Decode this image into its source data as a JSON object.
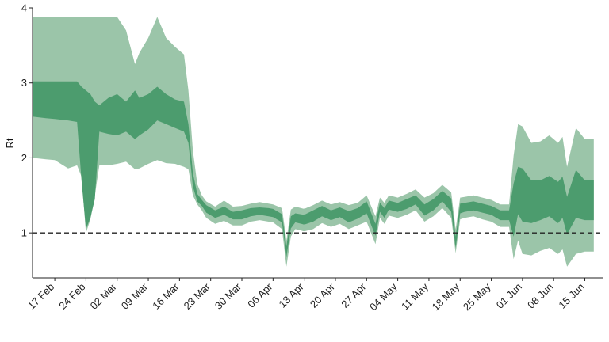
{
  "chart_data": {
    "type": "area",
    "ylabel": "Rt",
    "xlabel": "",
    "xlim": [
      "2020-02-12",
      "2020-06-19"
    ],
    "ylim": [
      0.4,
      4
    ],
    "y_ticks": [
      "1",
      "2",
      "3",
      "4"
    ],
    "x_ticks": [
      "17 Feb",
      "24 Feb",
      "02 Mar",
      "09 Mar",
      "16 Mar",
      "23 Mar",
      "30 Mar",
      "06 Apr",
      "13 Apr",
      "20 Apr",
      "27 Apr",
      "04 May",
      "11 May",
      "18 May",
      "25 May",
      "01 Jun",
      "08 Jun",
      "15 Jun"
    ],
    "x_tick_dates": [
      "2020-02-17",
      "2020-02-24",
      "2020-03-02",
      "2020-03-09",
      "2020-03-16",
      "2020-03-23",
      "2020-03-30",
      "2020-04-06",
      "2020-04-13",
      "2020-04-20",
      "2020-04-27",
      "2020-05-04",
      "2020-05-11",
      "2020-05-18",
      "2020-05-25",
      "2020-06-01",
      "2020-06-08",
      "2020-06-15"
    ],
    "reference_line": {
      "y": 1,
      "style": "dashed"
    },
    "colors": {
      "outer_band": "#9bc5a9",
      "inner_band": "#4c9c6e",
      "reference_line": "#222222"
    },
    "grid": false,
    "legend": "none",
    "series": [
      {
        "role": "90% credible interval",
        "x": [
          "2020-02-12",
          "2020-02-15",
          "2020-02-17",
          "2020-02-20",
          "2020-02-22",
          "2020-02-23",
          "2020-02-24",
          "2020-02-25",
          "2020-02-26",
          "2020-02-27",
          "2020-02-29",
          "2020-03-02",
          "2020-03-04",
          "2020-03-06",
          "2020-03-07",
          "2020-03-09",
          "2020-03-11",
          "2020-03-13",
          "2020-03-15",
          "2020-03-17",
          "2020-03-18",
          "2020-03-19",
          "2020-03-20",
          "2020-03-21",
          "2020-03-22",
          "2020-03-24",
          "2020-03-26",
          "2020-03-28",
          "2020-03-30",
          "2020-04-01",
          "2020-04-03",
          "2020-04-05",
          "2020-04-06",
          "2020-04-08",
          "2020-04-09",
          "2020-04-10",
          "2020-04-11",
          "2020-04-13",
          "2020-04-15",
          "2020-04-17",
          "2020-04-19",
          "2020-04-21",
          "2020-04-23",
          "2020-04-25",
          "2020-04-27",
          "2020-04-29",
          "2020-04-30",
          "2020-05-01",
          "2020-05-02",
          "2020-05-04",
          "2020-05-06",
          "2020-05-08",
          "2020-05-10",
          "2020-05-12",
          "2020-05-14",
          "2020-05-16",
          "2020-05-17",
          "2020-05-18",
          "2020-05-19",
          "2020-05-21",
          "2020-05-23",
          "2020-05-25",
          "2020-05-27",
          "2020-05-29",
          "2020-05-30",
          "2020-05-31",
          "2020-06-01",
          "2020-06-03",
          "2020-06-05",
          "2020-06-07",
          "2020-06-09",
          "2020-06-10",
          "2020-06-11",
          "2020-06-13",
          "2020-06-15",
          "2020-06-17"
        ],
        "upper": [
          3.88,
          3.88,
          3.88,
          3.88,
          3.88,
          3.88,
          3.88,
          3.88,
          3.88,
          3.88,
          3.88,
          3.88,
          3.7,
          3.25,
          3.4,
          3.6,
          3.88,
          3.6,
          3.48,
          3.38,
          2.9,
          2.1,
          1.65,
          1.5,
          1.42,
          1.35,
          1.43,
          1.35,
          1.36,
          1.39,
          1.41,
          1.39,
          1.38,
          1.33,
          0.9,
          1.31,
          1.35,
          1.32,
          1.37,
          1.43,
          1.38,
          1.41,
          1.37,
          1.4,
          1.5,
          1.22,
          1.47,
          1.4,
          1.5,
          1.47,
          1.52,
          1.58,
          1.47,
          1.53,
          1.64,
          1.54,
          1.05,
          1.47,
          1.48,
          1.5,
          1.47,
          1.44,
          1.38,
          1.38,
          2.03,
          2.45,
          2.42,
          2.2,
          2.22,
          2.3,
          2.2,
          2.28,
          1.88,
          2.4,
          2.25,
          2.25
        ],
        "lower": [
          2.0,
          1.98,
          1.97,
          1.86,
          1.9,
          1.75,
          1.0,
          1.18,
          1.5,
          1.9,
          1.9,
          1.92,
          1.95,
          1.85,
          1.86,
          1.92,
          1.97,
          1.93,
          1.92,
          1.88,
          1.85,
          1.5,
          1.38,
          1.3,
          1.2,
          1.12,
          1.16,
          1.1,
          1.1,
          1.15,
          1.17,
          1.15,
          1.14,
          1.05,
          0.55,
          0.95,
          1.05,
          1.02,
          1.05,
          1.13,
          1.08,
          1.12,
          1.05,
          1.1,
          1.15,
          0.85,
          1.2,
          1.12,
          1.23,
          1.2,
          1.24,
          1.3,
          1.15,
          1.22,
          1.33,
          1.2,
          0.73,
          1.18,
          1.2,
          1.22,
          1.18,
          1.15,
          1.08,
          1.08,
          0.65,
          0.9,
          0.72,
          0.7,
          0.76,
          0.8,
          0.72,
          0.78,
          0.55,
          0.72,
          0.75,
          0.75
        ]
      },
      {
        "role": "50% credible interval",
        "x": [
          "2020-02-12",
          "2020-02-15",
          "2020-02-17",
          "2020-02-20",
          "2020-02-22",
          "2020-02-23",
          "2020-02-24",
          "2020-02-25",
          "2020-02-26",
          "2020-02-27",
          "2020-02-29",
          "2020-03-02",
          "2020-03-04",
          "2020-03-06",
          "2020-03-07",
          "2020-03-09",
          "2020-03-11",
          "2020-03-13",
          "2020-03-15",
          "2020-03-17",
          "2020-03-18",
          "2020-03-19",
          "2020-03-20",
          "2020-03-21",
          "2020-03-22",
          "2020-03-24",
          "2020-03-26",
          "2020-03-28",
          "2020-03-30",
          "2020-04-01",
          "2020-04-03",
          "2020-04-05",
          "2020-04-06",
          "2020-04-08",
          "2020-04-09",
          "2020-04-10",
          "2020-04-11",
          "2020-04-13",
          "2020-04-15",
          "2020-04-17",
          "2020-04-19",
          "2020-04-21",
          "2020-04-23",
          "2020-04-25",
          "2020-04-27",
          "2020-04-29",
          "2020-04-30",
          "2020-05-01",
          "2020-05-02",
          "2020-05-04",
          "2020-05-06",
          "2020-05-08",
          "2020-05-10",
          "2020-05-12",
          "2020-05-14",
          "2020-05-16",
          "2020-05-17",
          "2020-05-18",
          "2020-05-19",
          "2020-05-21",
          "2020-05-23",
          "2020-05-25",
          "2020-05-27",
          "2020-05-29",
          "2020-05-30",
          "2020-05-31",
          "2020-06-01",
          "2020-06-03",
          "2020-06-05",
          "2020-06-07",
          "2020-06-09",
          "2020-06-10",
          "2020-06-11",
          "2020-06-13",
          "2020-06-15",
          "2020-06-17"
        ],
        "upper": [
          3.02,
          3.02,
          3.02,
          3.02,
          3.02,
          2.95,
          2.9,
          2.85,
          2.75,
          2.7,
          2.8,
          2.85,
          2.75,
          2.9,
          2.8,
          2.85,
          2.95,
          2.85,
          2.78,
          2.75,
          2.45,
          1.8,
          1.52,
          1.44,
          1.37,
          1.3,
          1.35,
          1.28,
          1.3,
          1.33,
          1.34,
          1.33,
          1.32,
          1.25,
          0.82,
          1.22,
          1.26,
          1.24,
          1.3,
          1.36,
          1.3,
          1.34,
          1.29,
          1.33,
          1.42,
          1.12,
          1.4,
          1.33,
          1.43,
          1.4,
          1.45,
          1.5,
          1.38,
          1.45,
          1.56,
          1.46,
          0.95,
          1.39,
          1.4,
          1.42,
          1.39,
          1.36,
          1.3,
          1.3,
          1.66,
          1.88,
          1.86,
          1.7,
          1.7,
          1.76,
          1.68,
          1.75,
          1.48,
          1.84,
          1.7,
          1.7
        ],
        "lower": [
          2.55,
          2.53,
          2.52,
          2.5,
          2.48,
          1.7,
          1.05,
          1.2,
          1.45,
          2.35,
          2.32,
          2.3,
          2.35,
          2.25,
          2.3,
          2.38,
          2.5,
          2.45,
          2.4,
          2.35,
          2.2,
          1.62,
          1.42,
          1.36,
          1.27,
          1.2,
          1.24,
          1.18,
          1.18,
          1.22,
          1.24,
          1.22,
          1.21,
          1.14,
          0.68,
          1.06,
          1.14,
          1.11,
          1.15,
          1.22,
          1.17,
          1.21,
          1.14,
          1.19,
          1.26,
          0.96,
          1.28,
          1.2,
          1.31,
          1.28,
          1.32,
          1.38,
          1.23,
          1.3,
          1.42,
          1.28,
          0.8,
          1.26,
          1.28,
          1.3,
          1.27,
          1.24,
          1.17,
          1.17,
          0.95,
          1.25,
          1.15,
          1.13,
          1.17,
          1.22,
          1.13,
          1.2,
          0.98,
          1.2,
          1.17,
          1.17
        ]
      }
    ]
  }
}
